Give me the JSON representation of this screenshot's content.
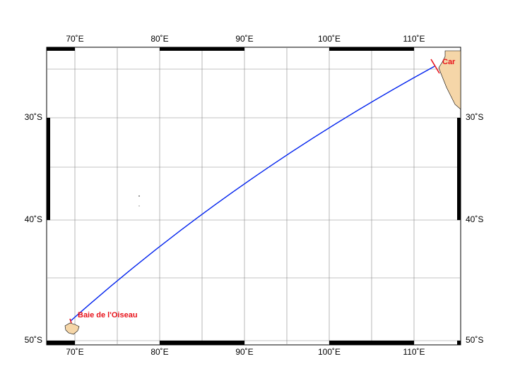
{
  "map": {
    "lon_labels": [
      "70˚E",
      "80˚E",
      "90˚E",
      "100˚E",
      "110˚E"
    ],
    "lat_labels": [
      "30˚S",
      "40˚S",
      "50˚S"
    ],
    "places": [
      {
        "label": "Baie de l'Oiseau"
      },
      {
        "label": "Car"
      }
    ]
  }
}
